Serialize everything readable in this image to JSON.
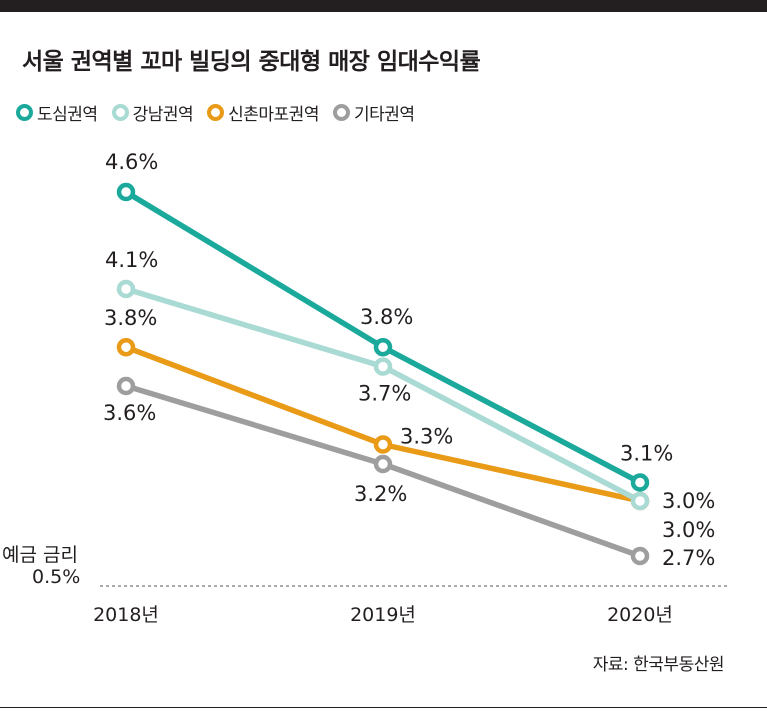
{
  "title": "서울 권역별 꼬마 빌딩의 중대형 매장 임대수익률",
  "source": "자료: 한국부동산원",
  "colors": {
    "background": "#ffffff",
    "top_bar": "#231f20",
    "text": "#231f20",
    "reference_line": "#777777"
  },
  "chart_data": {
    "type": "line",
    "title": "서울 권역별 꼬마 빌딩의 중대형 매장 임대수익률",
    "categories": [
      "2018년",
      "2019년",
      "2020년"
    ],
    "series": [
      {
        "name": "도심권역",
        "color": "#1aa99b",
        "values": [
          4.6,
          3.8,
          3.1
        ],
        "labels": [
          "4.6%",
          "3.8%",
          "3.1%"
        ]
      },
      {
        "name": "강남권역",
        "color": "#a9dad3",
        "values": [
          4.1,
          3.7,
          3.0
        ],
        "labels": [
          "4.1%",
          "3.7%",
          "3.0%"
        ]
      },
      {
        "name": "신촌마포권역",
        "color": "#e99a16",
        "values": [
          3.8,
          3.3,
          3.0
        ],
        "labels": [
          "3.8%",
          "3.3%",
          "3.0%"
        ]
      },
      {
        "name": "기타권역",
        "color": "#9e9e9e",
        "values": [
          3.6,
          3.2,
          2.7
        ],
        "labels": [
          "3.6%",
          "3.2%",
          "2.7%"
        ]
      }
    ],
    "reference_line": {
      "label_line1": "예금 금리",
      "label_line2": "0.5%",
      "value": 0.5,
      "style": "dashed"
    },
    "xlabel": "",
    "ylabel": "",
    "legend": "top-left",
    "grid": false
  }
}
